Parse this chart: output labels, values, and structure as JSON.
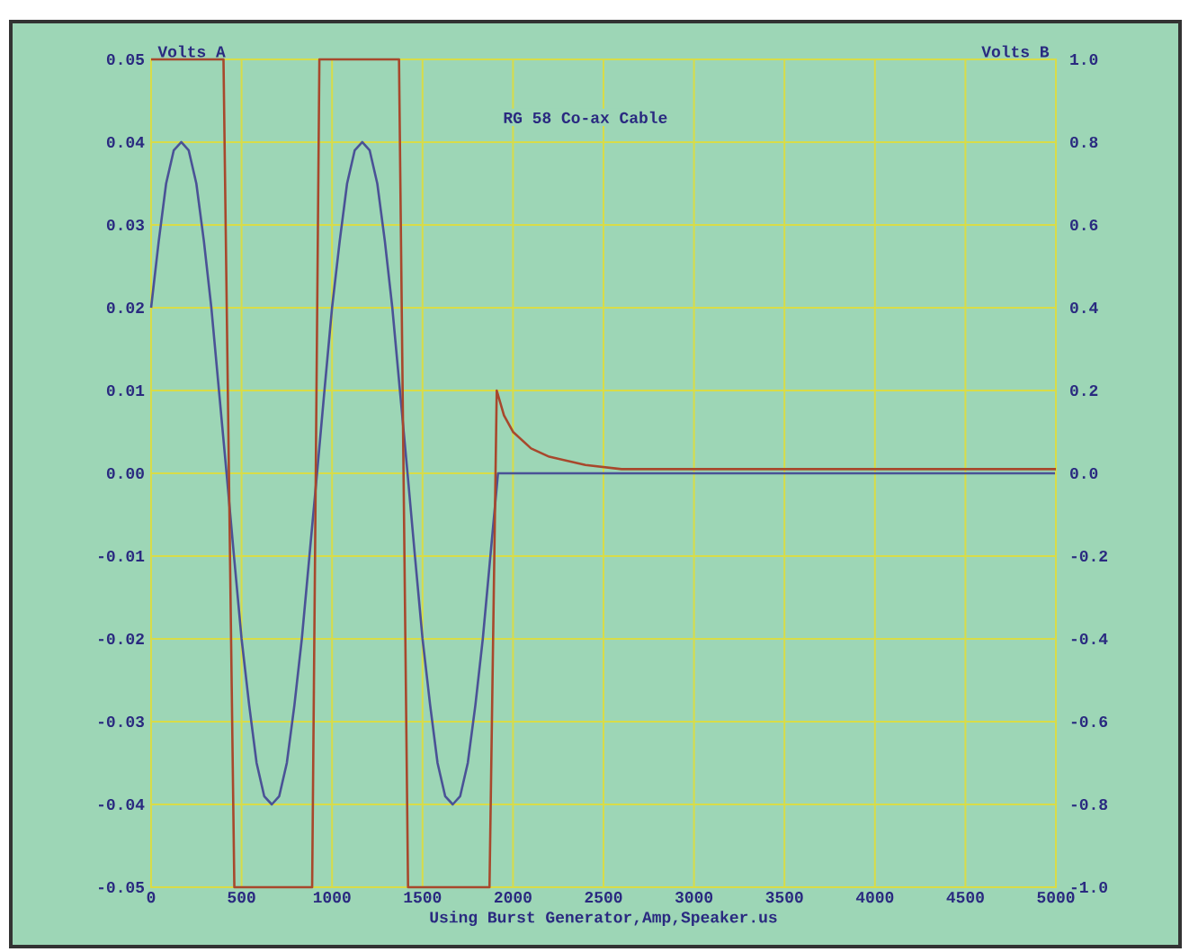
{
  "chart_data": {
    "type": "line",
    "title": "RG 58 Co-ax Cable",
    "xlabel": "Using Burst Generator,Amp,Speaker.us",
    "ylabel": "Volts A",
    "y2label": "Volts B",
    "xlim": [
      0,
      5000
    ],
    "xticks": [
      0,
      500,
      1000,
      1500,
      2000,
      2500,
      3000,
      3500,
      4000,
      4500,
      5000
    ],
    "ylim": [
      -0.05,
      0.05
    ],
    "yticks": [
      {
        "value": -0.05,
        "label": "-0.05"
      },
      {
        "value": -0.04,
        "label": "-0.04"
      },
      {
        "value": -0.03,
        "label": "-0.03"
      },
      {
        "value": -0.02,
        "label": "-0.02"
      },
      {
        "value": -0.01,
        "label": "-0.01"
      },
      {
        "value": 0,
        "label": "0.00"
      },
      {
        "value": 0.01,
        "label": "0.01"
      },
      {
        "value": 0.02,
        "label": "0.02"
      },
      {
        "value": 0.03,
        "label": "0.03"
      },
      {
        "value": 0.04,
        "label": "0.04"
      },
      {
        "value": 0.05,
        "label": "0.05"
      }
    ],
    "y2lim": [
      -1.0,
      1.0
    ],
    "y2ticks": [
      {
        "value": -1.0,
        "label": "-1.0"
      },
      {
        "value": -0.8,
        "label": "-0.8"
      },
      {
        "value": -0.6,
        "label": "-0.6"
      },
      {
        "value": -0.4,
        "label": "-0.4"
      },
      {
        "value": -0.2,
        "label": "-0.2"
      },
      {
        "value": 0,
        "label": "0.0"
      },
      {
        "value": 0.2,
        "label": "0.2"
      },
      {
        "value": 0.4,
        "label": "0.4"
      },
      {
        "value": 0.6,
        "label": "0.6"
      },
      {
        "value": 0.8,
        "label": "0.8"
      },
      {
        "value": 1.0,
        "label": "1.0"
      }
    ],
    "grid": true,
    "line_style": "solid",
    "series": [
      {
        "color": "#4a5296",
        "x": [
          0,
          42,
          83,
          125,
          167,
          208,
          250,
          292,
          333,
          375,
          417,
          458,
          500,
          542,
          583,
          625,
          667,
          708,
          750,
          792,
          833,
          875,
          917,
          958,
          1000,
          1042,
          1083,
          1125,
          1167,
          1208,
          1250,
          1292,
          1333,
          1375,
          1417,
          1458,
          1500,
          1542,
          1583,
          1625,
          1667,
          1708,
          1750,
          1792,
          1833,
          1875,
          1917,
          5000
        ],
        "values": [
          0.02,
          0.028,
          0.035,
          0.039,
          0.04,
          0.039,
          0.035,
          0.028,
          0.02,
          0.01,
          0,
          -0.01,
          -0.02,
          -0.028,
          -0.035,
          -0.039,
          -0.04,
          -0.039,
          -0.035,
          -0.028,
          -0.02,
          -0.01,
          0,
          0.01,
          0.02,
          0.028,
          0.035,
          0.039,
          0.04,
          0.039,
          0.035,
          0.028,
          0.02,
          0.01,
          0,
          -0.01,
          -0.02,
          -0.028,
          -0.035,
          -0.039,
          -0.04,
          -0.039,
          -0.035,
          -0.028,
          -0.02,
          -0.01,
          0,
          0
        ]
      },
      {
        "color": "#a8482c",
        "axis": "y2",
        "x": [
          0,
          400,
          460,
          890,
          930,
          1370,
          1420,
          1870,
          1910,
          1950,
          2000,
          2100,
          2200,
          2400,
          2600,
          3000,
          5000
        ],
        "values": [
          1.0,
          1.0,
          -1.0,
          -1.0,
          1.0,
          1.0,
          -1.0,
          -1.0,
          0.2,
          0.14,
          0.1,
          0.06,
          0.04,
          0.02,
          0.01,
          0.01,
          0.01
        ]
      }
    ]
  }
}
